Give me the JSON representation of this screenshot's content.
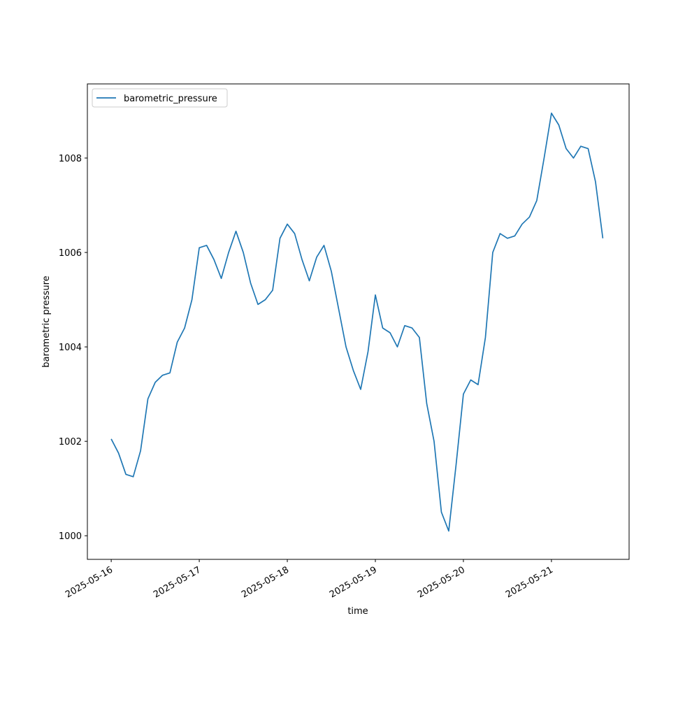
{
  "chart_data": {
    "type": "line",
    "x_label": "time",
    "y_label": "barometric pressure",
    "x": [
      "2025-05-16 00:00",
      "2025-05-16 02:00",
      "2025-05-16 04:00",
      "2025-05-16 06:00",
      "2025-05-16 08:00",
      "2025-05-16 10:00",
      "2025-05-16 12:00",
      "2025-05-16 14:00",
      "2025-05-16 16:00",
      "2025-05-16 18:00",
      "2025-05-16 20:00",
      "2025-05-16 22:00",
      "2025-05-17 00:00",
      "2025-05-17 02:00",
      "2025-05-17 04:00",
      "2025-05-17 06:00",
      "2025-05-17 08:00",
      "2025-05-17 10:00",
      "2025-05-17 12:00",
      "2025-05-17 14:00",
      "2025-05-17 16:00",
      "2025-05-17 18:00",
      "2025-05-17 20:00",
      "2025-05-17 22:00",
      "2025-05-18 00:00",
      "2025-05-18 02:00",
      "2025-05-18 04:00",
      "2025-05-18 06:00",
      "2025-05-18 08:00",
      "2025-05-18 10:00",
      "2025-05-18 12:00",
      "2025-05-18 14:00",
      "2025-05-18 16:00",
      "2025-05-18 18:00",
      "2025-05-18 20:00",
      "2025-05-18 22:00",
      "2025-05-19 00:00",
      "2025-05-19 02:00",
      "2025-05-19 04:00",
      "2025-05-19 06:00",
      "2025-05-19 08:00",
      "2025-05-19 10:00",
      "2025-05-19 12:00",
      "2025-05-19 14:00",
      "2025-05-19 16:00",
      "2025-05-19 18:00",
      "2025-05-19 20:00",
      "2025-05-19 22:00",
      "2025-05-20 00:00",
      "2025-05-20 02:00",
      "2025-05-20 04:00",
      "2025-05-20 06:00",
      "2025-05-20 08:00",
      "2025-05-20 10:00",
      "2025-05-20 12:00",
      "2025-05-20 14:00",
      "2025-05-20 16:00",
      "2025-05-20 18:00",
      "2025-05-20 20:00",
      "2025-05-20 22:00",
      "2025-05-21 00:00",
      "2025-05-21 02:00",
      "2025-05-21 04:00",
      "2025-05-21 06:00",
      "2025-05-21 08:00",
      "2025-05-21 10:00",
      "2025-05-21 12:00",
      "2025-05-21 14:00"
    ],
    "series": [
      {
        "name": "barometric_pressure",
        "color": "#1f77b4",
        "values": [
          1002.05,
          1001.75,
          1001.3,
          1001.25,
          1001.8,
          1002.9,
          1003.25,
          1003.4,
          1003.45,
          1004.1,
          1004.4,
          1005.0,
          1006.1,
          1006.15,
          1005.85,
          1005.45,
          1006.0,
          1006.45,
          1006.0,
          1005.35,
          1004.9,
          1005.0,
          1005.2,
          1006.3,
          1006.6,
          1006.4,
          1005.85,
          1005.4,
          1005.9,
          1006.15,
          1005.6,
          1004.8,
          1004.0,
          1003.5,
          1003.1,
          1003.9,
          1005.1,
          1004.4,
          1004.3,
          1004.0,
          1004.45,
          1004.4,
          1004.2,
          1002.8,
          1002.0,
          1000.5,
          1000.1,
          1001.5,
          1003.0,
          1003.3,
          1003.2,
          1004.2,
          1006.0,
          1006.4,
          1006.3,
          1006.35,
          1006.6,
          1006.75,
          1007.1,
          1008.0,
          1008.95,
          1008.7,
          1008.2,
          1008.0,
          1008.25,
          1008.2,
          1007.5,
          1006.3
        ]
      }
    ],
    "xlim": [
      "2025-05-15 17:30",
      "2025-05-21 21:10"
    ],
    "xticks": [
      "2025-05-16",
      "2025-05-17",
      "2025-05-18",
      "2025-05-19",
      "2025-05-20",
      "2025-05-21"
    ],
    "ylim": [
      999.5,
      1009.57
    ],
    "yticks": [
      1000,
      1002,
      1004,
      1006,
      1008
    ],
    "grid": false,
    "legend": "upper left"
  }
}
